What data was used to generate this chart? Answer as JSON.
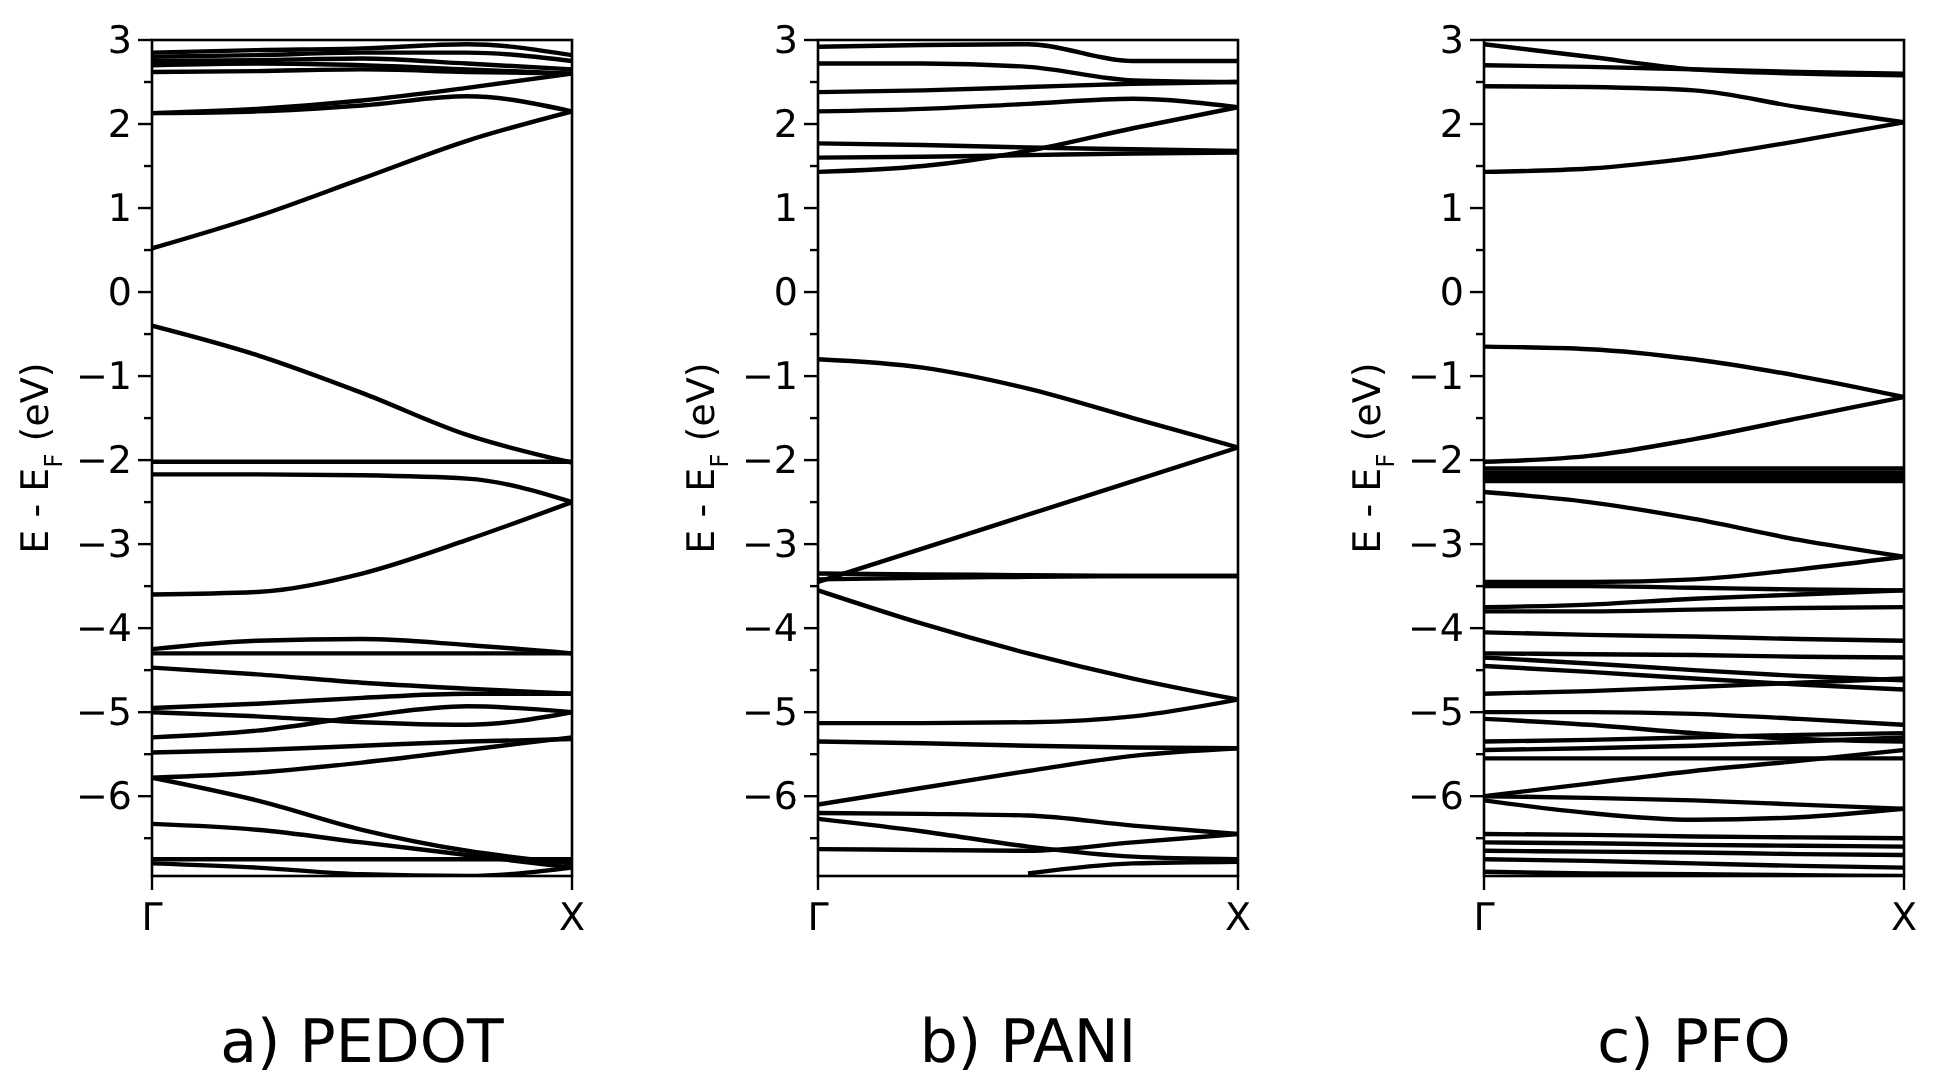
{
  "chart_data": [
    {
      "type": "line",
      "title": "a) PEDOT",
      "ylabel": "E - E$_{F}$ (eV)",
      "categories": [
        "Γ",
        null,
        null,
        null,
        "X"
      ],
      "ylim": [
        -6.95,
        3
      ],
      "yticks": [
        {
          "value": -6.5,
          "label": null
        },
        {
          "value": -6,
          "label": "−6"
        },
        {
          "value": -5.5,
          "label": null
        },
        {
          "value": -5,
          "label": "−5"
        },
        {
          "value": -4.5,
          "label": null
        },
        {
          "value": -4,
          "label": "−4"
        },
        {
          "value": -3.5,
          "label": null
        },
        {
          "value": -3,
          "label": "−3"
        },
        {
          "value": -2.5,
          "label": null
        },
        {
          "value": -2,
          "label": "−2"
        },
        {
          "value": -1.5,
          "label": null
        },
        {
          "value": -1,
          "label": "−1"
        },
        {
          "value": -0.5,
          "label": null
        },
        0,
        {
          "value": 0.5,
          "label": null
        },
        1,
        {
          "value": 1.5,
          "label": null
        },
        2,
        {
          "value": 2.5,
          "label": null
        },
        3
      ],
      "series": [
        {
          "color": "#000000",
          "values": [
            2.85,
            2.88,
            2.9,
            2.95,
            2.82
          ]
        },
        {
          "color": "#000000",
          "values": [
            2.8,
            2.82,
            2.85,
            2.85,
            2.75
          ]
        },
        {
          "color": "#000000",
          "values": [
            2.75,
            2.76,
            2.78,
            2.72,
            2.65
          ]
        },
        {
          "color": "#000000",
          "values": [
            2.7,
            2.72,
            2.7,
            2.65,
            2.6
          ]
        },
        {
          "color": "#000000",
          "values": [
            2.62,
            2.63,
            2.65,
            2.62,
            2.6
          ]
        },
        {
          "color": "#000000",
          "values": [
            2.13,
            2.18,
            2.28,
            2.43,
            2.6
          ]
        },
        {
          "color": "#000000",
          "values": [
            2.13,
            2.15,
            2.22,
            2.33,
            2.15
          ]
        },
        {
          "color": "#000000",
          "values": [
            0.52,
            0.9,
            1.35,
            1.8,
            2.15
          ]
        },
        {
          "color": "#000000",
          "values": [
            -0.4,
            -0.75,
            -1.2,
            -1.7,
            -2.03
          ]
        },
        {
          "color": "#000000",
          "values": [
            -2.02,
            -2.02,
            -2.02,
            -2.02,
            -2.02
          ]
        },
        {
          "color": "#000000",
          "values": [
            -2.17,
            -2.17,
            -2.18,
            -2.22,
            -2.5
          ]
        },
        {
          "color": "#000000",
          "values": [
            -3.6,
            -3.57,
            -3.35,
            -2.95,
            -2.5
          ]
        },
        {
          "color": "#000000",
          "values": [
            -4.25,
            -4.15,
            -4.13,
            -4.2,
            -4.3
          ]
        },
        {
          "color": "#000000",
          "values": [
            -4.3,
            -4.3,
            -4.3,
            -4.3,
            -4.3
          ]
        },
        {
          "color": "#000000",
          "values": [
            -4.47,
            -4.55,
            -4.65,
            -4.72,
            -4.78
          ]
        },
        {
          "color": "#000000",
          "values": [
            -4.95,
            -4.9,
            -4.83,
            -4.78,
            -4.78
          ]
        },
        {
          "color": "#000000",
          "values": [
            -5,
            -5.05,
            -5.12,
            -5.15,
            -5
          ]
        },
        {
          "color": "#000000",
          "values": [
            -5.3,
            -5.22,
            -5.05,
            -4.93,
            -5
          ]
        },
        {
          "color": "#000000",
          "values": [
            -5.48,
            -5.45,
            -5.4,
            -5.35,
            -5.32
          ]
        },
        {
          "color": "#000000",
          "values": [
            -5.78,
            -5.72,
            -5.6,
            -5.45,
            -5.3
          ]
        },
        {
          "color": "#000000",
          "values": [
            -5.78,
            -6.05,
            -6.4,
            -6.65,
            -6.8
          ]
        },
        {
          "color": "#000000",
          "values": [
            -6.33,
            -6.4,
            -6.55,
            -6.7,
            -6.85
          ]
        },
        {
          "color": "#000000",
          "values": [
            -6.75,
            -6.75,
            -6.75,
            -6.75,
            -6.75
          ]
        },
        {
          "color": "#000000",
          "values": [
            -6.8,
            -6.85,
            -6.93,
            -6.95,
            -6.85
          ]
        }
      ]
    },
    {
      "type": "line",
      "title": "b) PANI",
      "ylabel": "E - E$_{F}$ (eV)",
      "categories": [
        "Γ",
        null,
        null,
        null,
        "X"
      ],
      "ylim": [
        -6.95,
        3
      ],
      "yticks": [
        {
          "value": -6.5,
          "label": null
        },
        {
          "value": -6,
          "label": "−6"
        },
        {
          "value": -5.5,
          "label": null
        },
        {
          "value": -5,
          "label": "−5"
        },
        {
          "value": -4.5,
          "label": null
        },
        {
          "value": -4,
          "label": "−4"
        },
        {
          "value": -3.5,
          "label": null
        },
        {
          "value": -3,
          "label": "−3"
        },
        {
          "value": -2.5,
          "label": null
        },
        {
          "value": -2,
          "label": "−2"
        },
        {
          "value": -1.5,
          "label": null
        },
        {
          "value": -1,
          "label": "−1"
        },
        {
          "value": -0.5,
          "label": null
        },
        0,
        {
          "value": 0.5,
          "label": null
        },
        1,
        {
          "value": 1.5,
          "label": null
        },
        2,
        {
          "value": 2.5,
          "label": null
        },
        3
      ],
      "series": [
        {
          "color": "#000000",
          "values": [
            2.92,
            2.94,
            2.95,
            2.75,
            2.75
          ]
        },
        {
          "color": "#000000",
          "values": [
            2.72,
            2.72,
            2.68,
            2.52,
            2.5
          ]
        },
        {
          "color": "#000000",
          "values": [
            2.38,
            2.4,
            2.44,
            2.48,
            2.5
          ]
        },
        {
          "color": "#000000",
          "values": [
            2.15,
            2.18,
            2.24,
            2.3,
            2.2
          ]
        },
        {
          "color": "#000000",
          "values": [
            1.77,
            1.75,
            1.72,
            1.7,
            1.68
          ]
        },
        {
          "color": "#000000",
          "values": [
            1.6,
            1.61,
            1.63,
            1.65,
            1.66
          ]
        },
        {
          "color": "#000000",
          "values": [
            1.43,
            1.5,
            1.68,
            1.95,
            2.2
          ]
        },
        {
          "color": "#000000",
          "values": [
            -0.8,
            -0.9,
            -1.15,
            -1.5,
            -1.85
          ]
        },
        {
          "color": "#000000",
          "values": [
            -3.45,
            -3.05,
            -2.65,
            -2.25,
            -1.85
          ]
        },
        {
          "color": "#000000",
          "values": [
            -3.35,
            -3.36,
            -3.37,
            -3.38,
            -3.38
          ]
        },
        {
          "color": "#000000",
          "values": [
            -3.42,
            -3.4,
            -3.39,
            -3.38,
            -3.38
          ]
        },
        {
          "color": "#000000",
          "values": [
            -3.55,
            -3.95,
            -4.3,
            -4.6,
            -4.85
          ]
        },
        {
          "color": "#000000",
          "values": [
            -5.13,
            -5.13,
            -5.12,
            -5.05,
            -4.85
          ]
        },
        {
          "color": "#000000",
          "values": [
            -5.35,
            -5.37,
            -5.4,
            -5.42,
            -5.43
          ]
        },
        {
          "color": "#000000",
          "values": [
            -6.1,
            -5.9,
            -5.7,
            -5.52,
            -5.43
          ]
        },
        {
          "color": "#000000",
          "values": [
            -6.2,
            -6.21,
            -6.23,
            -6.35,
            -6.45
          ]
        },
        {
          "color": "#000000",
          "values": [
            -6.27,
            -6.42,
            -6.6,
            -6.72,
            -6.75
          ]
        },
        {
          "color": "#000000",
          "values": [
            -6.63,
            -6.64,
            -6.65,
            -6.55,
            -6.45
          ]
        },
        {
          "color": "#000000",
          "values": [
            null,
            null,
            -6.92,
            -6.8,
            -6.78
          ]
        }
      ]
    },
    {
      "type": "line",
      "title": "c) PFO",
      "ylabel": "E - E$_{F}$ (eV)",
      "categories": [
        "Γ",
        null,
        null,
        null,
        "X"
      ],
      "ylim": [
        -6.95,
        3
      ],
      "yticks": [
        {
          "value": -6.5,
          "label": null
        },
        {
          "value": -6,
          "label": "−6"
        },
        {
          "value": -5.5,
          "label": null
        },
        {
          "value": -5,
          "label": "−5"
        },
        {
          "value": -4.5,
          "label": null
        },
        {
          "value": -4,
          "label": "−4"
        },
        {
          "value": -3.5,
          "label": null
        },
        {
          "value": -3,
          "label": "−3"
        },
        {
          "value": -2.5,
          "label": null
        },
        {
          "value": -2,
          "label": "−2"
        },
        {
          "value": -1.5,
          "label": null
        },
        {
          "value": -1,
          "label": "−1"
        },
        {
          "value": -0.5,
          "label": null
        },
        0,
        {
          "value": 0.5,
          "label": null
        },
        1,
        {
          "value": 1.5,
          "label": null
        },
        2,
        {
          "value": 2.5,
          "label": null
        },
        3
      ],
      "series": [
        {
          "color": "#000000",
          "values": [
            2.95,
            2.8,
            2.65,
            2.6,
            2.58
          ]
        },
        {
          "color": "#000000",
          "values": [
            2.7,
            2.68,
            2.65,
            2.62,
            2.6
          ]
        },
        {
          "color": "#000000",
          "values": [
            2.45,
            2.44,
            2.4,
            2.2,
            2.02
          ]
        },
        {
          "color": "#000000",
          "values": [
            1.43,
            1.47,
            1.6,
            1.8,
            2.02
          ]
        },
        {
          "color": "#000000",
          "values": [
            -0.65,
            -0.68,
            -0.8,
            -1,
            -1.25
          ]
        },
        {
          "color": "#000000",
          "values": [
            -2.02,
            -1.95,
            -1.75,
            -1.5,
            -1.25
          ]
        },
        {
          "color": "#000000",
          "values": [
            -2.1,
            -2.1,
            -2.1,
            -2.1,
            -2.1
          ]
        },
        {
          "color": "#000000",
          "values": [
            -2.15,
            -2.15,
            -2.15,
            -2.15,
            -2.15
          ]
        },
        {
          "color": "#000000",
          "values": [
            -2.2,
            -2.2,
            -2.2,
            -2.2,
            -2.2
          ]
        },
        {
          "color": "#000000",
          "values": [
            -2.25,
            -2.25,
            -2.25,
            -2.25,
            -2.25
          ]
        },
        {
          "color": "#000000",
          "values": [
            -2.38,
            -2.5,
            -2.7,
            -2.95,
            -3.15
          ]
        },
        {
          "color": "#000000",
          "values": [
            -3.45,
            -3.45,
            -3.42,
            -3.3,
            -3.15
          ]
        },
        {
          "color": "#000000",
          "values": [
            -3.5,
            -3.5,
            -3.52,
            -3.54,
            -3.55
          ]
        },
        {
          "color": "#000000",
          "values": [
            -3.75,
            -3.72,
            -3.65,
            -3.6,
            -3.55
          ]
        },
        {
          "color": "#000000",
          "values": [
            -3.8,
            -3.8,
            -3.78,
            -3.76,
            -3.75
          ]
        },
        {
          "color": "#000000",
          "values": [
            -4.05,
            -4.08,
            -4.1,
            -4.13,
            -4.15
          ]
        },
        {
          "color": "#000000",
          "values": [
            -4.3,
            -4.31,
            -4.32,
            -4.34,
            -4.35
          ]
        },
        {
          "color": "#000000",
          "values": [
            -4.35,
            -4.42,
            -4.5,
            -4.57,
            -4.62
          ]
        },
        {
          "color": "#000000",
          "values": [
            -4.45,
            -4.52,
            -4.6,
            -4.67,
            -4.73
          ]
        },
        {
          "color": "#000000",
          "values": [
            -4.78,
            -4.75,
            -4.7,
            -4.65,
            -4.6
          ]
        },
        {
          "color": "#000000",
          "values": [
            -5,
            -5,
            -5.02,
            -5.08,
            -5.15
          ]
        },
        {
          "color": "#000000",
          "values": [
            -5.08,
            -5.15,
            -5.25,
            -5.32,
            -5.35
          ]
        },
        {
          "color": "#000000",
          "values": [
            -5.35,
            -5.33,
            -5.3,
            -5.27,
            -5.25
          ]
        },
        {
          "color": "#000000",
          "values": [
            -5.45,
            -5.43,
            -5.4,
            -5.35,
            -5.3
          ]
        },
        {
          "color": "#000000",
          "values": [
            -5.55,
            -5.55,
            -5.55,
            -5.55,
            -5.55
          ]
        },
        {
          "color": "#000000",
          "values": [
            -6,
            -5.85,
            -5.7,
            -5.58,
            -5.45
          ]
        },
        {
          "color": "#000000",
          "values": [
            -6.05,
            -6.2,
            -6.28,
            -6.25,
            -6.15
          ]
        },
        {
          "color": "#000000",
          "values": [
            -6,
            -6.02,
            -6.05,
            -6.1,
            -6.15
          ]
        },
        {
          "color": "#000000",
          "values": [
            -6.45,
            -6.46,
            -6.48,
            -6.49,
            -6.5
          ]
        },
        {
          "color": "#000000",
          "values": [
            -6.55,
            -6.56,
            -6.58,
            -6.59,
            -6.6
          ]
        },
        {
          "color": "#000000",
          "values": [
            -6.65,
            -6.66,
            -6.67,
            -6.69,
            -6.7
          ]
        },
        {
          "color": "#000000",
          "values": [
            -6.75,
            -6.77,
            -6.8,
            -6.83,
            -6.85
          ]
        },
        {
          "color": "#000000",
          "values": [
            -6.9,
            -6.92,
            -6.93,
            -6.94,
            -6.95
          ]
        }
      ]
    }
  ]
}
